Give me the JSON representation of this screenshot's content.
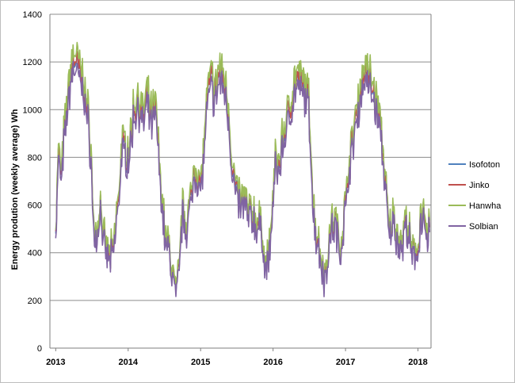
{
  "chart_data": {
    "type": "line",
    "title": "",
    "xlabel": "",
    "ylabel": "Energy prodution (weekly average) Wh",
    "ylim": [
      0,
      1400
    ],
    "yticks": [
      0,
      200,
      400,
      600,
      800,
      1000,
      1200,
      1400
    ],
    "xlim": [
      2012.92,
      2018.18
    ],
    "xtick_labels": [
      "2013",
      "2014",
      "2015",
      "2016",
      "2017",
      "2018"
    ],
    "xtick_values": [
      2013,
      2014,
      2015,
      2016,
      2017,
      2018
    ],
    "grid": true,
    "legend_position": "right",
    "approx_shape_keypoints": {
      "x": [
        2013.0,
        2013.04,
        2013.08,
        2013.12,
        2013.17,
        2013.22,
        2013.27,
        2013.32,
        2013.38,
        2013.43,
        2013.48,
        2013.52,
        2013.56,
        2013.62,
        2013.66,
        2013.7,
        2013.76,
        2013.8,
        2013.85,
        2013.92,
        2014.0,
        2014.04,
        2014.08,
        2014.14,
        2014.2,
        2014.26,
        2014.32,
        2014.38,
        2014.45,
        2014.48,
        2014.52,
        2014.56,
        2014.62,
        2014.66,
        2014.7,
        2014.73,
        2014.76,
        2014.8,
        2014.86,
        2014.92,
        2015.0,
        2015.04,
        2015.08,
        2015.14,
        2015.2,
        2015.26,
        2015.32,
        2015.38,
        2015.42,
        2015.46,
        2015.5,
        2015.56,
        2015.6,
        2015.66,
        2015.72,
        2015.78,
        2015.84,
        2015.9,
        2015.96,
        2016.0,
        2016.04,
        2016.08,
        2016.14,
        2016.2,
        2016.26,
        2016.32,
        2016.38,
        2016.44,
        2016.48,
        2016.52,
        2016.56,
        2016.6,
        2016.66,
        2016.72,
        2016.78,
        2016.82,
        2016.86,
        2016.92,
        2017.0,
        2017.04,
        2017.08,
        2017.14,
        2017.2,
        2017.26,
        2017.32,
        2017.38,
        2017.44,
        2017.48,
        2017.52,
        2017.56,
        2017.6,
        2017.66,
        2017.72,
        2017.78,
        2017.82,
        2017.86,
        2017.92,
        2018.0,
        2018.04,
        2018.08,
        2018.12,
        2018.16
      ],
      "values": [
        520,
        800,
        720,
        900,
        1050,
        1180,
        1210,
        1160,
        1110,
        1000,
        860,
        520,
        460,
        600,
        440,
        400,
        380,
        420,
        580,
        840,
        820,
        880,
        1000,
        1040,
        960,
        1030,
        960,
        990,
        700,
        560,
        440,
        420,
        300,
        220,
        300,
        500,
        580,
        520,
        600,
        760,
        680,
        800,
        1000,
        1120,
        1060,
        1150,
        1120,
        1020,
        820,
        700,
        640,
        600,
        620,
        560,
        560,
        520,
        500,
        340,
        420,
        640,
        780,
        760,
        880,
        960,
        1050,
        1120,
        1100,
        1080,
        1050,
        860,
        560,
        480,
        380,
        300,
        460,
        520,
        520,
        420,
        580,
        760,
        820,
        960,
        1060,
        1160,
        1130,
        1080,
        1000,
        940,
        800,
        640,
        480,
        540,
        470,
        430,
        520,
        500,
        380,
        420,
        560,
        520,
        440,
        520
      ]
    },
    "series": [
      {
        "name": "Isofoton",
        "color": "#4f81bd",
        "offset": 0
      },
      {
        "name": "Jinko",
        "color": "#c0504d",
        "offset": 5
      },
      {
        "name": "Hanwha",
        "color": "#9bbb59",
        "offset": 25
      },
      {
        "name": "Solbian",
        "color": "#8064a2",
        "offset": -22
      }
    ]
  }
}
